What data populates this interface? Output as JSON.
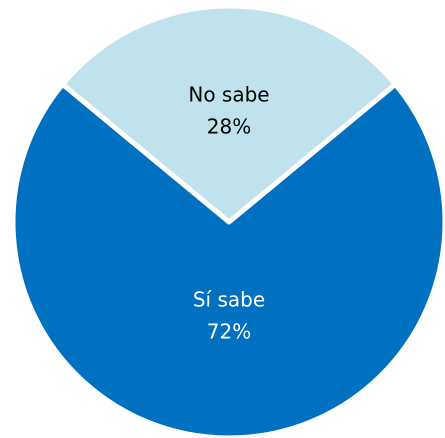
{
  "chart_data": {
    "type": "pie",
    "categories": [
      "No sabe",
      "Sí sabe"
    ],
    "values": [
      28,
      72
    ],
    "value_labels": [
      "28%",
      "72%"
    ],
    "colors": [
      "#c0e2ec",
      "#0070c0"
    ],
    "label_colors": [
      "#000000",
      "#ffffff"
    ]
  }
}
